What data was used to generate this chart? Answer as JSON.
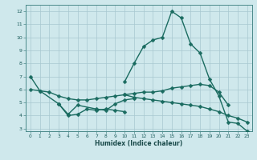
{
  "xlabel": "Humidex (Indice chaleur)",
  "background_color": "#cfe8ec",
  "grid_color": "#a8c8d0",
  "line_color": "#1a6b60",
  "xlim": [
    -0.5,
    23.5
  ],
  "ylim": [
    2.8,
    12.5
  ],
  "yticks": [
    3,
    4,
    5,
    6,
    7,
    8,
    9,
    10,
    11,
    12
  ],
  "xticks": [
    0,
    1,
    2,
    3,
    4,
    5,
    6,
    7,
    8,
    9,
    10,
    11,
    12,
    13,
    14,
    15,
    16,
    17,
    18,
    19,
    20,
    21,
    22,
    23
  ],
  "markersize": 2.5,
  "linewidth": 1.0,
  "lines": [
    {
      "x": [
        0,
        1,
        3,
        4,
        5,
        7,
        8,
        9,
        10,
        11
      ],
      "y": [
        7.0,
        5.9,
        4.9,
        4.1,
        4.8,
        4.5,
        4.4,
        4.9,
        5.2,
        5.3
      ]
    },
    {
      "x": [
        3,
        4,
        5,
        6,
        7,
        8,
        9,
        10
      ],
      "y": [
        4.9,
        4.0,
        4.1,
        4.5,
        4.4,
        4.5,
        4.4,
        4.3
      ]
    },
    {
      "x": [
        0,
        1,
        2,
        3,
        4,
        5,
        6,
        7,
        8,
        9,
        10,
        11,
        12,
        13,
        14,
        15,
        16,
        17,
        18,
        19,
        20,
        21
      ],
      "y": [
        6.0,
        5.9,
        5.8,
        5.5,
        5.3,
        5.2,
        5.2,
        5.3,
        5.4,
        5.5,
        5.6,
        5.7,
        5.8,
        5.8,
        5.9,
        6.1,
        6.2,
        6.3,
        6.4,
        6.3,
        5.8,
        4.8
      ]
    },
    {
      "x": [
        10,
        11,
        12,
        13,
        14,
        15,
        16,
        17,
        18,
        19,
        20,
        21,
        22,
        23
      ],
      "y": [
        6.6,
        8.0,
        9.3,
        9.8,
        10.0,
        12.0,
        11.5,
        9.5,
        8.8,
        6.8,
        5.5,
        3.5,
        3.4,
        2.8
      ]
    },
    {
      "x": [
        10,
        11,
        12,
        13,
        14,
        15,
        16,
        17,
        18,
        19,
        20,
        21,
        22,
        23
      ],
      "y": [
        5.6,
        5.4,
        5.3,
        5.2,
        5.1,
        5.0,
        4.9,
        4.8,
        4.7,
        4.5,
        4.3,
        4.0,
        3.8,
        3.5
      ]
    }
  ]
}
